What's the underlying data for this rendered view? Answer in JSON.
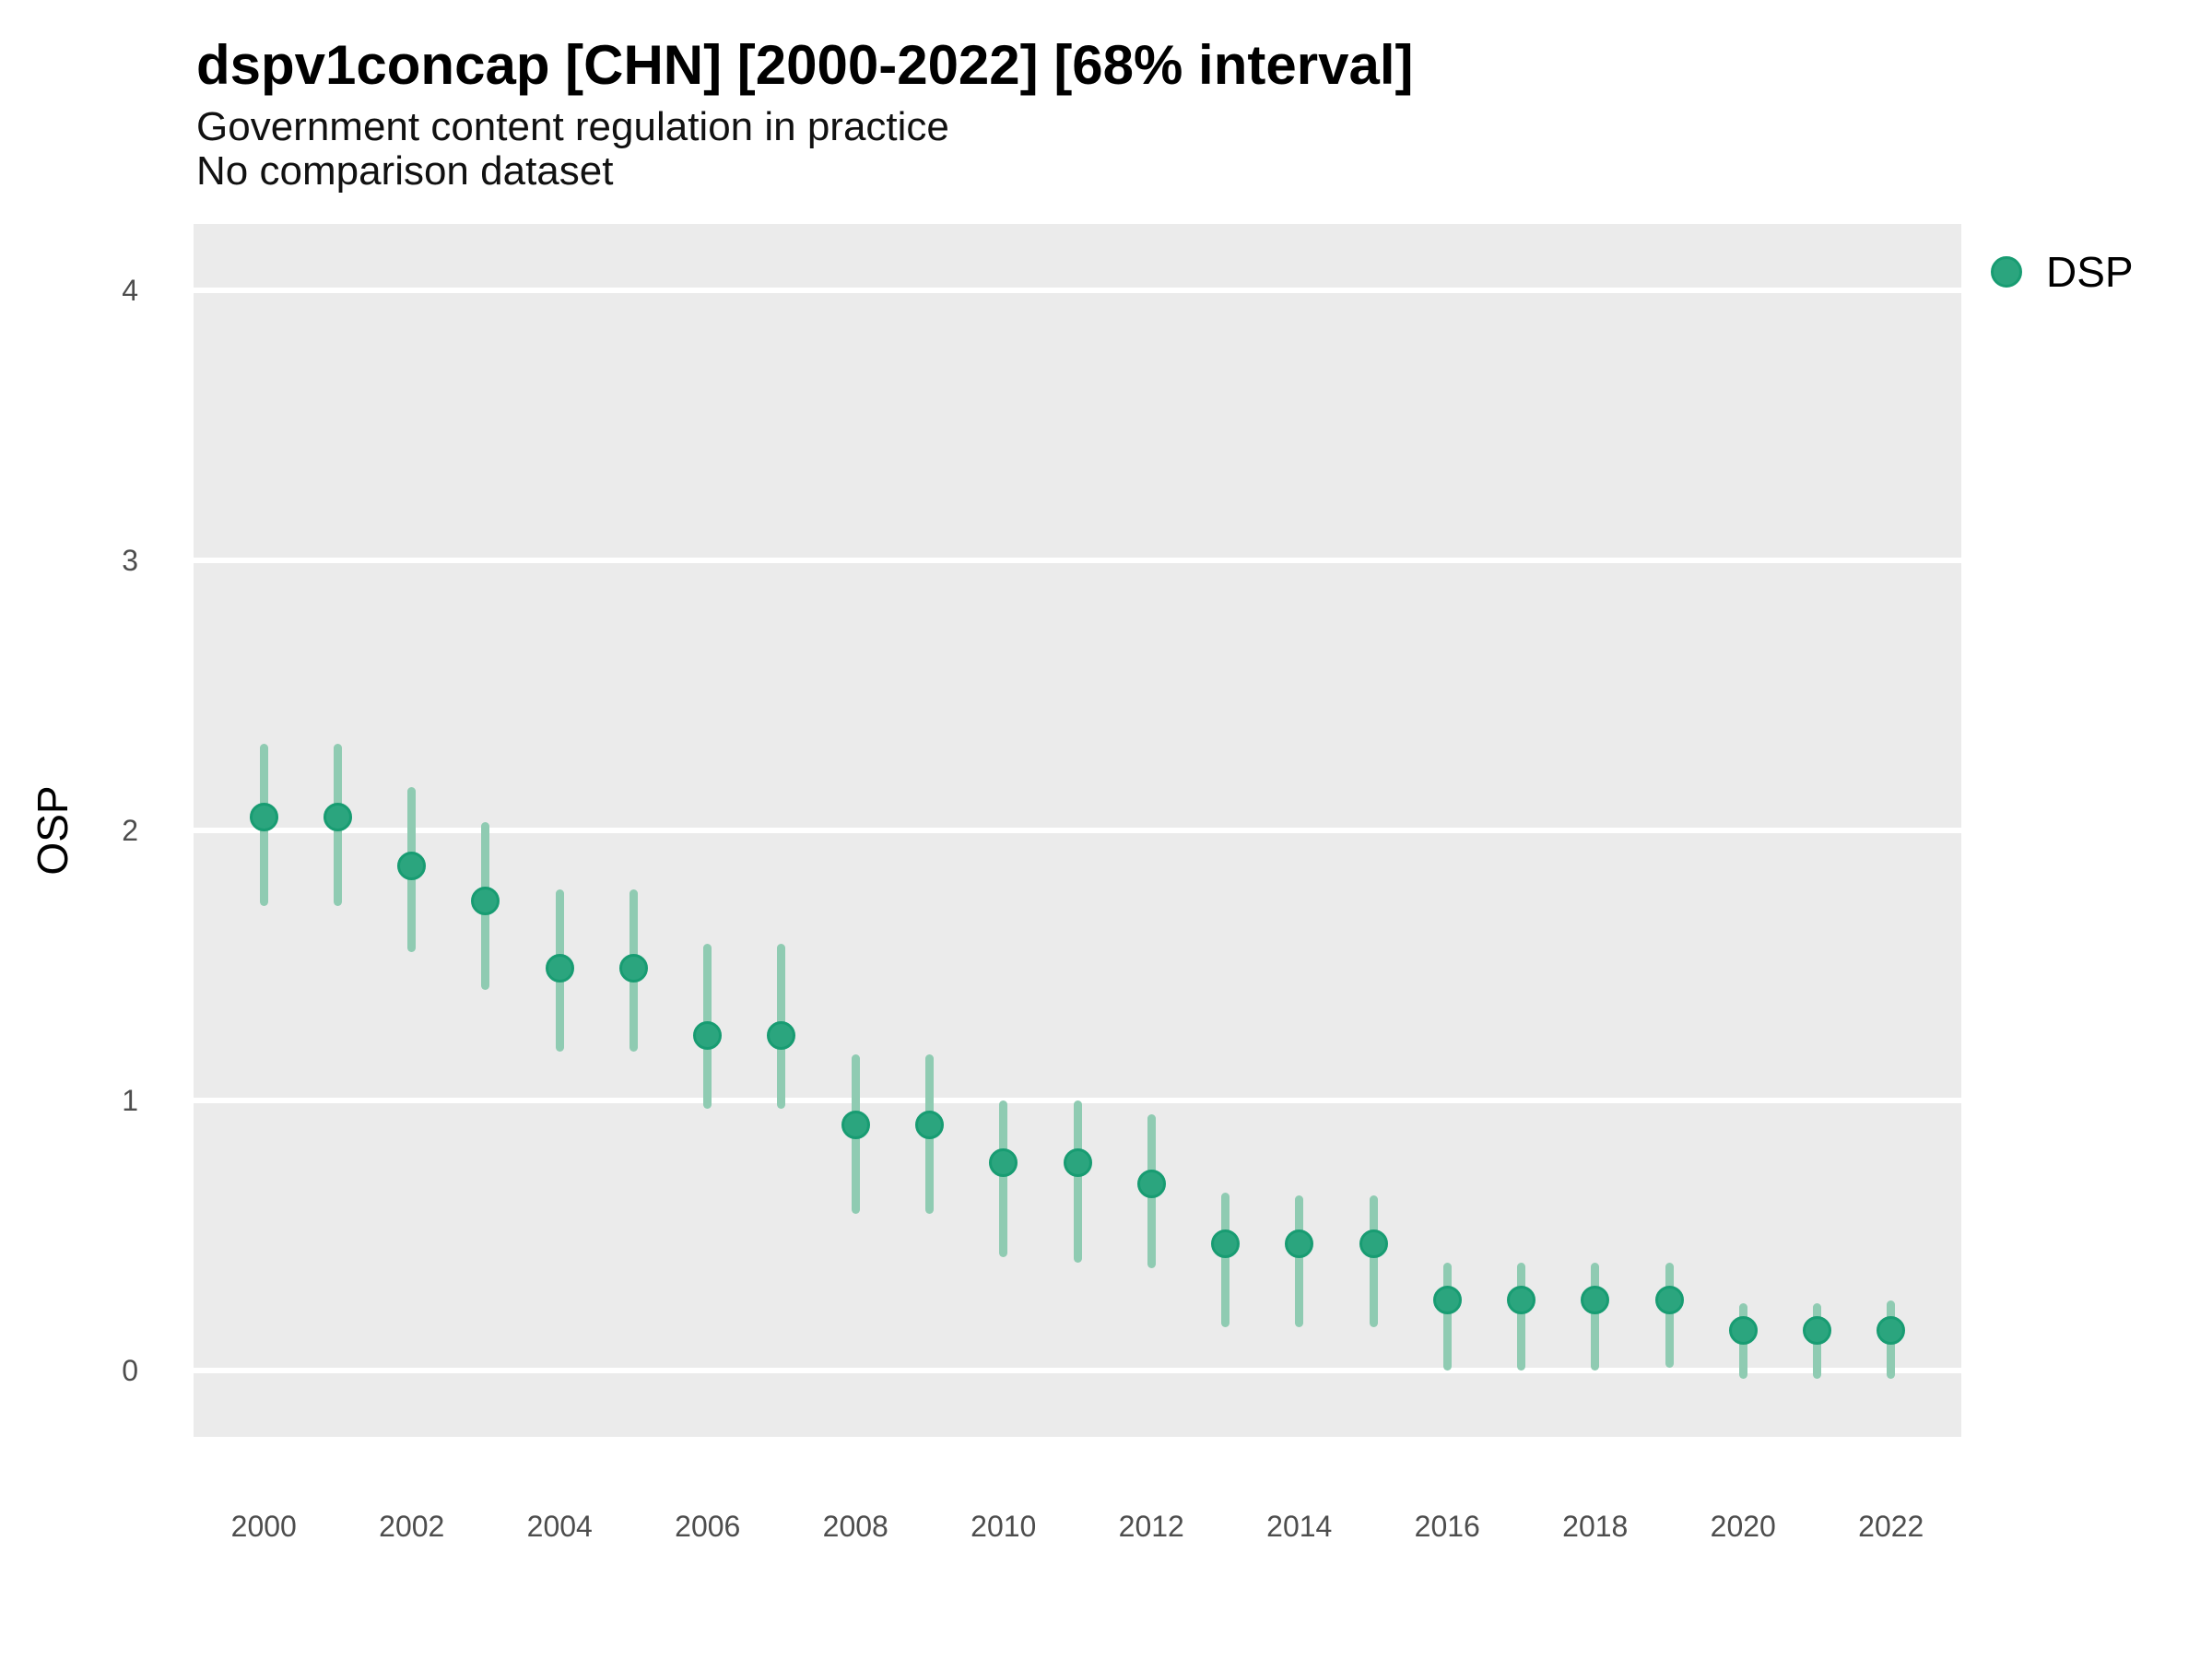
{
  "header": {
    "title": "dspv1concap [CHN] [2000-2022] [68% interval]",
    "subtitle": "Government content regulation in practice",
    "subtitle2": "No comparison dataset"
  },
  "legend": {
    "position": "right-top",
    "items": [
      {
        "label": "DSP",
        "color": "#2BA57E"
      }
    ]
  },
  "colors": {
    "panel_background": "#EBEBEB",
    "gridline": "#FFFFFF",
    "point_fill": "#2BA57E",
    "point_stroke": "#189C72",
    "errorbar": "#8FCBB2",
    "tick_text": "#4D4D4D",
    "title_text": "#000000"
  },
  "chart_data": {
    "type": "scatter",
    "title": "dspv1concap [CHN] [2000-2022] [68% interval]",
    "subtitle": "Government content regulation in practice",
    "note": "No comparison dataset",
    "interval": "68%",
    "xlabel": "",
    "ylabel": "OSP",
    "ylim": [
      -0.25,
      4.25
    ],
    "xlim": [
      1999,
      2023
    ],
    "y_ticks": [
      0,
      1,
      2,
      3,
      4
    ],
    "x_ticks": [
      2000,
      2002,
      2004,
      2006,
      2008,
      2010,
      2012,
      2014,
      2016,
      2018,
      2020,
      2022
    ],
    "grid": "horizontal-major-only",
    "legend_position": "right-top",
    "series": [
      {
        "name": "DSP",
        "points": [
          {
            "year": 2000,
            "est": 2.05,
            "lo": 1.72,
            "hi": 2.32
          },
          {
            "year": 2001,
            "est": 2.05,
            "lo": 1.72,
            "hi": 2.32
          },
          {
            "year": 2002,
            "est": 1.87,
            "lo": 1.55,
            "hi": 2.16
          },
          {
            "year": 2003,
            "est": 1.74,
            "lo": 1.41,
            "hi": 2.03
          },
          {
            "year": 2004,
            "est": 1.49,
            "lo": 1.18,
            "hi": 1.78
          },
          {
            "year": 2005,
            "est": 1.49,
            "lo": 1.18,
            "hi": 1.78
          },
          {
            "year": 2006,
            "est": 1.24,
            "lo": 0.97,
            "hi": 1.58
          },
          {
            "year": 2007,
            "est": 1.24,
            "lo": 0.97,
            "hi": 1.58
          },
          {
            "year": 2008,
            "est": 0.91,
            "lo": 0.58,
            "hi": 1.17
          },
          {
            "year": 2009,
            "est": 0.91,
            "lo": 0.58,
            "hi": 1.17
          },
          {
            "year": 2010,
            "est": 0.77,
            "lo": 0.42,
            "hi": 1.0
          },
          {
            "year": 2011,
            "est": 0.77,
            "lo": 0.4,
            "hi": 1.0
          },
          {
            "year": 2012,
            "est": 0.69,
            "lo": 0.38,
            "hi": 0.95
          },
          {
            "year": 2013,
            "est": 0.47,
            "lo": 0.16,
            "hi": 0.66
          },
          {
            "year": 2014,
            "est": 0.47,
            "lo": 0.16,
            "hi": 0.65
          },
          {
            "year": 2015,
            "est": 0.47,
            "lo": 0.16,
            "hi": 0.65
          },
          {
            "year": 2016,
            "est": 0.26,
            "lo": 0.0,
            "hi": 0.4
          },
          {
            "year": 2017,
            "est": 0.26,
            "lo": 0.0,
            "hi": 0.4
          },
          {
            "year": 2018,
            "est": 0.26,
            "lo": 0.0,
            "hi": 0.4
          },
          {
            "year": 2019,
            "est": 0.26,
            "lo": 0.01,
            "hi": 0.4
          },
          {
            "year": 2020,
            "est": 0.15,
            "lo": -0.03,
            "hi": 0.25
          },
          {
            "year": 2021,
            "est": 0.15,
            "lo": -0.03,
            "hi": 0.25
          },
          {
            "year": 2022,
            "est": 0.15,
            "lo": -0.03,
            "hi": 0.26
          }
        ]
      }
    ]
  }
}
